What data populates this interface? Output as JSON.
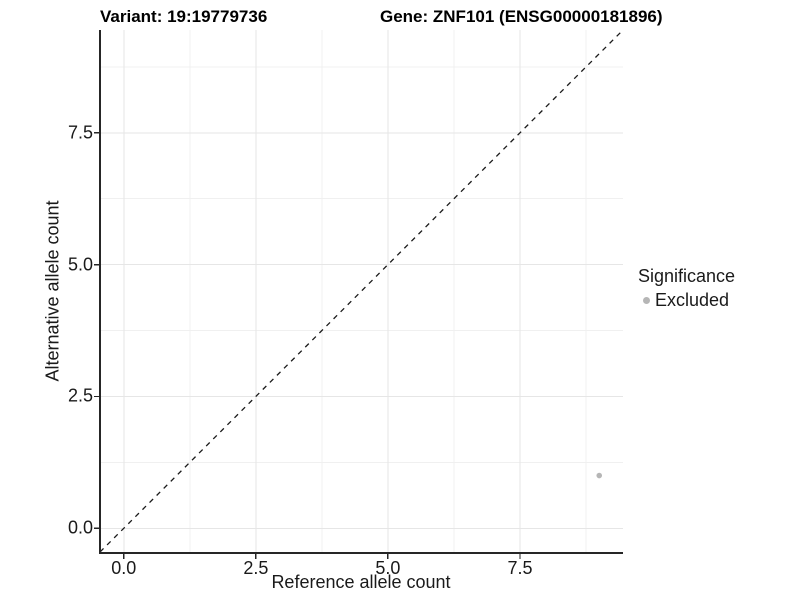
{
  "titles": {
    "variant": "Variant: 19:19779736",
    "gene": "Gene: ZNF101 (ENSG00000181896)"
  },
  "chart_data": {
    "type": "scatter",
    "title": "Variant: 19:19779736   Gene: ZNF101 (ENSG00000181896)",
    "xlabel": "Reference allele count",
    "ylabel": "Alternative allele count",
    "xlim": [
      -0.45,
      9.45
    ],
    "ylim": [
      -0.45,
      9.45
    ],
    "x_major_ticks": [
      0,
      2.5,
      5,
      7.5
    ],
    "x_tick_labels": [
      "0.0",
      "2.5",
      "5.0",
      "7.5"
    ],
    "y_major_ticks": [
      0,
      2.5,
      5,
      7.5
    ],
    "y_tick_labels": [
      "0.0",
      "2.5",
      "5.0",
      "7.5"
    ],
    "x_minor_ticks": [
      1.25,
      3.75,
      6.25,
      8.75
    ],
    "y_minor_ticks": [
      1.25,
      3.75,
      6.25,
      8.75
    ],
    "grid": {
      "major_color": "#e6e6e6",
      "minor_color": "#f0f0f0"
    },
    "axis_color": "#262626",
    "reference_line": {
      "type": "identity",
      "equation": "y = x",
      "style": "dashed",
      "color": "#1a1a1a"
    },
    "series": [
      {
        "name": "Excluded",
        "color": "#b6b6b6",
        "points": [
          {
            "x": 9,
            "y": 1
          }
        ]
      }
    ],
    "legend": {
      "title": "Significance",
      "position": "right",
      "entries": [
        {
          "label": "Excluded",
          "color": "#b6b6b6"
        }
      ]
    }
  }
}
